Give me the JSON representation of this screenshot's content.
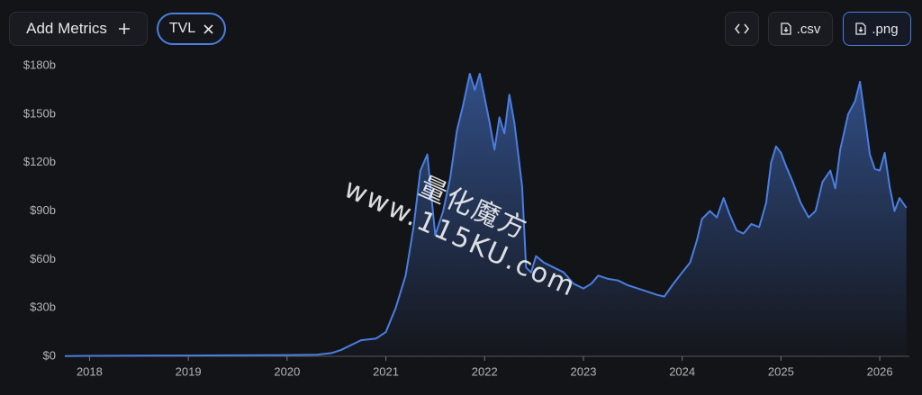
{
  "toolbar": {
    "add_metrics": "Add Metrics",
    "metric_chip": "TVL",
    "export_csv": ".csv",
    "export_png": ".png"
  },
  "watermark": "量化魔方www.115KU.com",
  "chart_data": {
    "type": "area",
    "color": "#4a7ee0",
    "grid": false,
    "x": [
      2017.75,
      2018,
      2018.5,
      2019,
      2019.5,
      2020,
      2020.3,
      2020.45,
      2020.55,
      2020.65,
      2020.75,
      2020.9,
      2021,
      2021.1,
      2021.2,
      2021.28,
      2021.35,
      2021.42,
      2021.5,
      2021.58,
      2021.65,
      2021.72,
      2021.78,
      2021.85,
      2021.9,
      2021.95,
      2022,
      2022.05,
      2022.1,
      2022.15,
      2022.2,
      2022.25,
      2022.3,
      2022.35,
      2022.38,
      2022.42,
      2022.47,
      2022.52,
      2022.6,
      2022.7,
      2022.8,
      2022.9,
      2023,
      2023.08,
      2023.15,
      2023.25,
      2023.35,
      2023.45,
      2023.55,
      2023.65,
      2023.75,
      2023.82,
      2023.9,
      2024,
      2024.08,
      2024.15,
      2024.2,
      2024.28,
      2024.35,
      2024.42,
      2024.48,
      2024.55,
      2024.62,
      2024.7,
      2024.78,
      2024.85,
      2024.9,
      2024.95,
      2025,
      2025.05,
      2025.12,
      2025.2,
      2025.28,
      2025.35,
      2025.42,
      2025.5,
      2025.55,
      2025.6,
      2025.68,
      2025.75,
      2025.8,
      2025.85,
      2025.9,
      2025.95,
      2026,
      2026.05,
      2026.1,
      2026.15,
      2026.2,
      2026.27
    ],
    "values": [
      0.1,
      0.3,
      0.4,
      0.5,
      0.6,
      0.8,
      1,
      2,
      4,
      7,
      10,
      11,
      15,
      30,
      50,
      80,
      115,
      125,
      75,
      90,
      110,
      140,
      155,
      175,
      165,
      175,
      160,
      145,
      128,
      148,
      138,
      162,
      145,
      120,
      105,
      55,
      52,
      62,
      58,
      55,
      52,
      45,
      42,
      45,
      50,
      48,
      47,
      44,
      42,
      40,
      38,
      37,
      44,
      52,
      58,
      72,
      85,
      90,
      86,
      98,
      88,
      78,
      76,
      82,
      80,
      95,
      120,
      130,
      126,
      118,
      108,
      95,
      86,
      90,
      108,
      115,
      104,
      128,
      150,
      158,
      170,
      148,
      125,
      116,
      115,
      126,
      105,
      90,
      98,
      92
    ],
    "xlim": [
      2017.75,
      2026.3
    ],
    "xticks": [
      2018,
      2019,
      2020,
      2021,
      2022,
      2023,
      2024,
      2025,
      2026
    ],
    "ylim": [
      0,
      180
    ],
    "yticks": [
      {
        "value": 0,
        "label": "$0"
      },
      {
        "value": 30,
        "label": "$30b"
      },
      {
        "value": 60,
        "label": "$60b"
      },
      {
        "value": 90,
        "label": "$90b"
      },
      {
        "value": 120,
        "label": "$120b"
      },
      {
        "value": 150,
        "label": "$150b"
      },
      {
        "value": 180,
        "label": "$180b"
      }
    ]
  }
}
